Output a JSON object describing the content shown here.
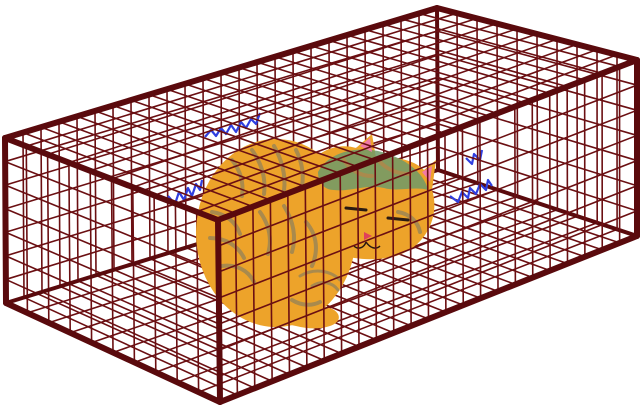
{
  "illustration": {
    "subject": "cat-in-cage",
    "icons": [
      "cage-icon",
      "sleeping-cat-icon",
      "trembling-lines-icon"
    ],
    "colors": {
      "background": "#ffffff",
      "cage_bar": "#6b0f12",
      "cage_frame": "#5a0a0d",
      "cat_body": "#eda32a",
      "cat_stripe": "#a98a4d",
      "cat_shade": "#6f9a68",
      "cat_ear_inner": "#f07aa8",
      "tremble_lines": "#2f3fe0"
    }
  }
}
